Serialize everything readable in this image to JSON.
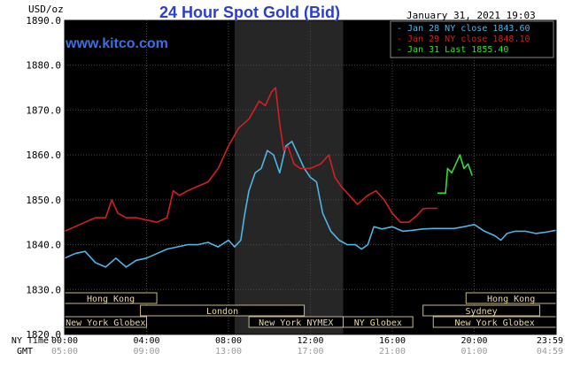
{
  "chart_data": {
    "type": "line",
    "title": "24 Hour Spot Gold (Bid)",
    "watermark": "www.kitco.com",
    "date_stamp": "January 31, 2021 19:03",
    "ylabel": "USD/oz",
    "ylim": [
      1820,
      1890
    ],
    "yticks": [
      "1890.0",
      "1880.0",
      "1870.0",
      "1860.0",
      "1850.0",
      "1840.0",
      "1830.0",
      "1820.0"
    ],
    "x_unit": "hours after 00:00 NY time",
    "xlim": [
      0,
      24
    ],
    "ny_time_label": "NY Time",
    "gmt_label": "GMT",
    "ny_ticks": [
      "00:00",
      "04:00",
      "08:00",
      "12:00",
      "16:00",
      "20:00",
      "23:59"
    ],
    "gmt_ticks": [
      "05:00",
      "09:00",
      "13:00",
      "17:00",
      "21:00",
      "01:00",
      "04:59"
    ],
    "grid": true,
    "legend_position": "top-right",
    "background": "#000000",
    "shaded_regions": [
      {
        "from": 8.3,
        "to": 13.6,
        "color": "#262626"
      }
    ],
    "markets": [
      {
        "label": "Hong Kong",
        "from": 0,
        "to": 4.5,
        "row": 0
      },
      {
        "label": "Hong Kong",
        "from": 19.6,
        "to": 24,
        "row": 0
      },
      {
        "label": "London",
        "from": 3.7,
        "to": 11.7,
        "row": 1
      },
      {
        "label": "Sydney",
        "from": 17.5,
        "to": 23.2,
        "row": 1
      },
      {
        "label": "New York Globex",
        "from": 0,
        "to": 4.0,
        "row": 2
      },
      {
        "label": "New York NYMEX",
        "from": 9.0,
        "to": 13.6,
        "row": 2
      },
      {
        "label": "NY Globex",
        "from": 13.6,
        "to": 17.0,
        "row": 2
      },
      {
        "label": "New York Globex",
        "from": 18.0,
        "to": 24,
        "row": 2
      }
    ],
    "series": [
      {
        "name": "Jan 28 NY close 1843.60",
        "color": "#4fb4e6",
        "points": [
          [
            0,
            1837
          ],
          [
            0.5,
            1838
          ],
          [
            1,
            1838.5
          ],
          [
            1.5,
            1836
          ],
          [
            2,
            1835
          ],
          [
            2.5,
            1837
          ],
          [
            3,
            1835
          ],
          [
            3.5,
            1836.5
          ],
          [
            4,
            1837
          ],
          [
            4.5,
            1838
          ],
          [
            5,
            1839
          ],
          [
            5.5,
            1839.5
          ],
          [
            6,
            1840
          ],
          [
            6.5,
            1840
          ],
          [
            7,
            1840.5
          ],
          [
            7.5,
            1839.5
          ],
          [
            8,
            1841
          ],
          [
            8.3,
            1839.5
          ],
          [
            8.6,
            1841
          ],
          [
            8.8,
            1847
          ],
          [
            9,
            1852
          ],
          [
            9.3,
            1856
          ],
          [
            9.6,
            1857
          ],
          [
            9.9,
            1861
          ],
          [
            10.2,
            1860
          ],
          [
            10.5,
            1856
          ],
          [
            10.8,
            1862
          ],
          [
            11.1,
            1863
          ],
          [
            11.4,
            1860
          ],
          [
            11.7,
            1857
          ],
          [
            12,
            1855
          ],
          [
            12.3,
            1854
          ],
          [
            12.6,
            1847
          ],
          [
            13,
            1843
          ],
          [
            13.4,
            1841
          ],
          [
            13.8,
            1840
          ],
          [
            14.2,
            1840
          ],
          [
            14.5,
            1839
          ],
          [
            14.8,
            1840
          ],
          [
            15.1,
            1844
          ],
          [
            15.5,
            1843.5
          ],
          [
            16,
            1844
          ],
          [
            16.5,
            1843
          ],
          [
            17,
            1843.2
          ],
          [
            17.5,
            1843.5
          ],
          [
            18,
            1843.6
          ],
          [
            19,
            1843.6
          ],
          [
            19.5,
            1844
          ],
          [
            20,
            1844.5
          ],
          [
            20.5,
            1843
          ],
          [
            21,
            1842
          ],
          [
            21.3,
            1841
          ],
          [
            21.6,
            1842.5
          ],
          [
            22,
            1843
          ],
          [
            22.5,
            1843
          ],
          [
            23,
            1842.5
          ],
          [
            23.5,
            1842.8
          ],
          [
            24,
            1843.2
          ]
        ]
      },
      {
        "name": "Jan 29 NY close 1848.10",
        "color": "#d22020",
        "points": [
          [
            0,
            1843
          ],
          [
            0.5,
            1844
          ],
          [
            1,
            1845
          ],
          [
            1.5,
            1846
          ],
          [
            2,
            1846
          ],
          [
            2.3,
            1850
          ],
          [
            2.6,
            1847
          ],
          [
            3,
            1846
          ],
          [
            3.5,
            1846
          ],
          [
            4,
            1845.5
          ],
          [
            4.5,
            1845
          ],
          [
            5,
            1846
          ],
          [
            5.3,
            1852
          ],
          [
            5.6,
            1851
          ],
          [
            6,
            1852
          ],
          [
            6.5,
            1853
          ],
          [
            7,
            1854
          ],
          [
            7.5,
            1857
          ],
          [
            8,
            1862
          ],
          [
            8.5,
            1866
          ],
          [
            9,
            1868
          ],
          [
            9.5,
            1872
          ],
          [
            9.8,
            1871
          ],
          [
            10.1,
            1874
          ],
          [
            10.3,
            1875
          ],
          [
            10.5,
            1867
          ],
          [
            10.7,
            1861
          ],
          [
            10.9,
            1862
          ],
          [
            11.2,
            1858
          ],
          [
            11.5,
            1857
          ],
          [
            12,
            1857
          ],
          [
            12.5,
            1858
          ],
          [
            12.9,
            1860
          ],
          [
            13.2,
            1855
          ],
          [
            13.5,
            1853
          ],
          [
            13.9,
            1851
          ],
          [
            14.3,
            1849
          ],
          [
            14.8,
            1851
          ],
          [
            15.2,
            1852
          ],
          [
            15.6,
            1850
          ],
          [
            16,
            1847
          ],
          [
            16.4,
            1845
          ],
          [
            16.8,
            1845
          ],
          [
            17.2,
            1846.5
          ],
          [
            17.5,
            1848
          ],
          [
            17.7,
            1848.1
          ],
          [
            18.2,
            1848.1
          ]
        ]
      },
      {
        "name": "Jan 31 Last 1855.40",
        "color": "#30e030",
        "points": [
          [
            18.2,
            1851.5
          ],
          [
            18.6,
            1851.5
          ],
          [
            18.7,
            1857
          ],
          [
            18.9,
            1856
          ],
          [
            19.1,
            1858
          ],
          [
            19.3,
            1860
          ],
          [
            19.5,
            1857
          ],
          [
            19.7,
            1858
          ],
          [
            19.9,
            1855.4
          ]
        ]
      }
    ]
  }
}
